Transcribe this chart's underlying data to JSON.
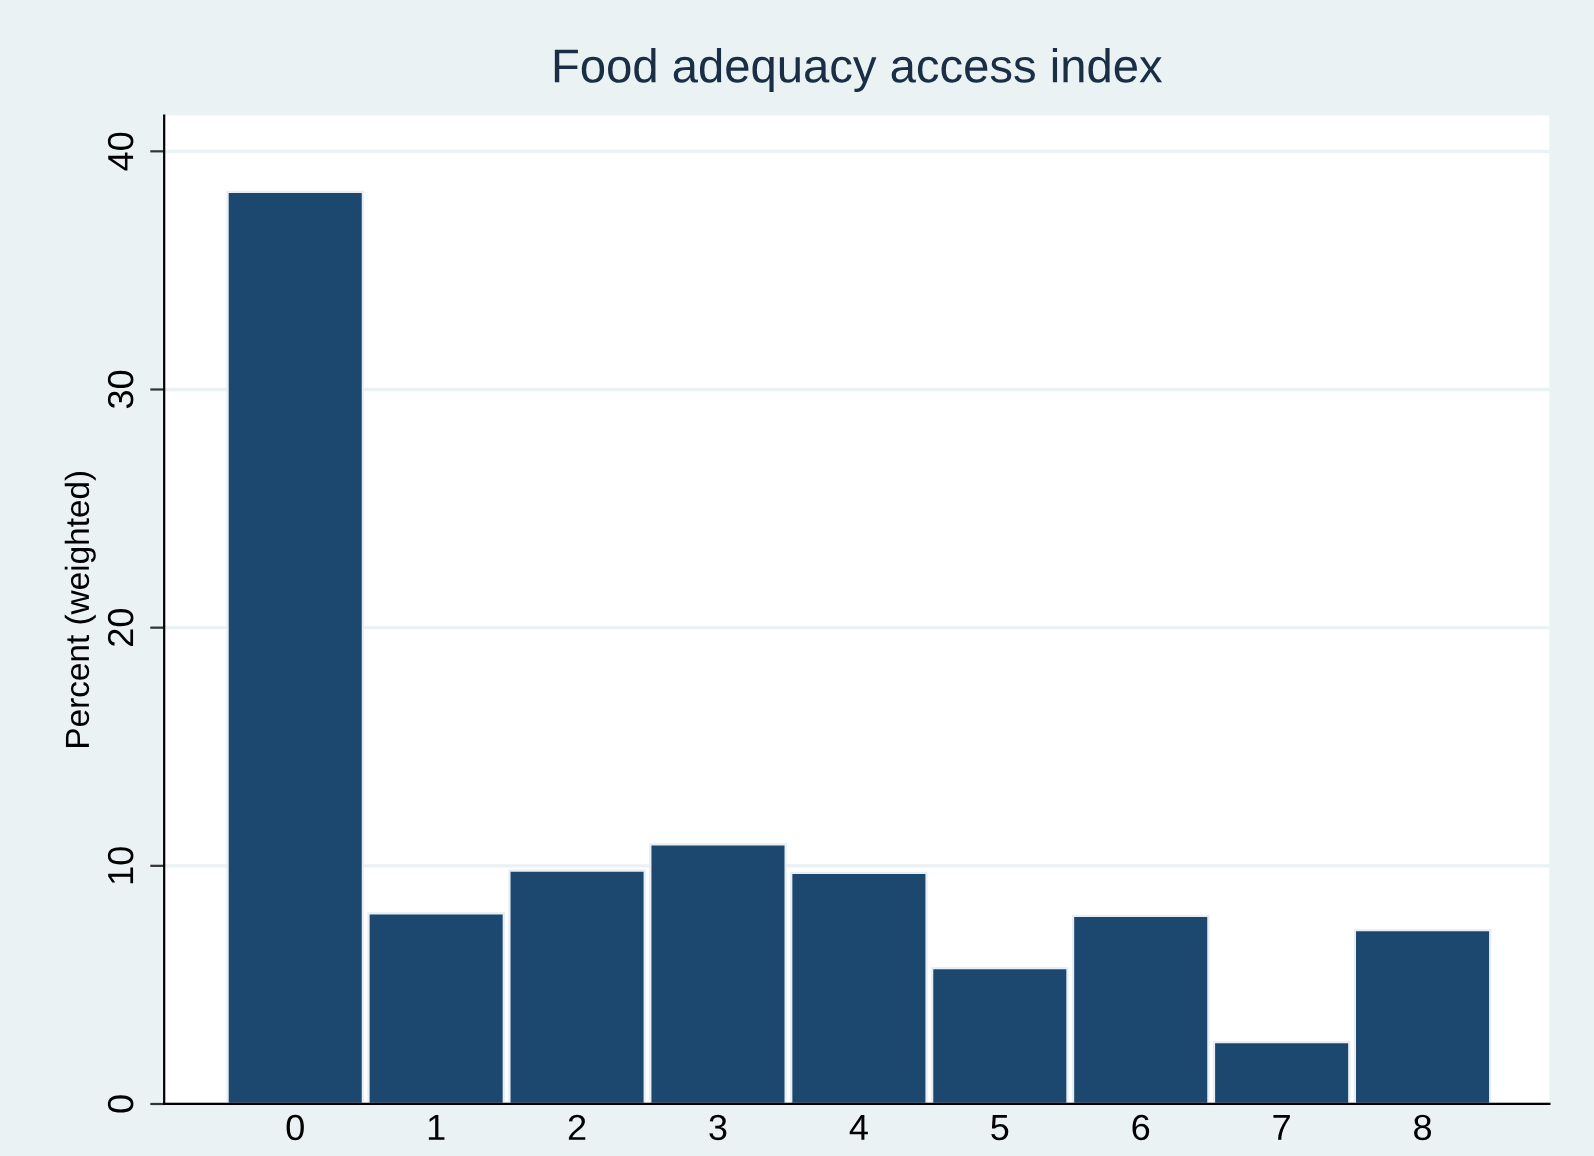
{
  "chart_data": {
    "type": "bar",
    "title": "Food adequacy access index",
    "ylabel": "Percent (weighted)",
    "categories": [
      "0",
      "1",
      "2",
      "3",
      "4",
      "5",
      "6",
      "7",
      "8"
    ],
    "values": [
      38.3,
      8.0,
      9.8,
      10.9,
      9.7,
      5.7,
      7.9,
      2.6,
      7.3
    ],
    "color": "#1c4870",
    "ylim": [
      0,
      41.5
    ],
    "yticks": [
      0,
      10,
      20,
      30,
      40
    ],
    "grid": "y",
    "legend": false
  }
}
